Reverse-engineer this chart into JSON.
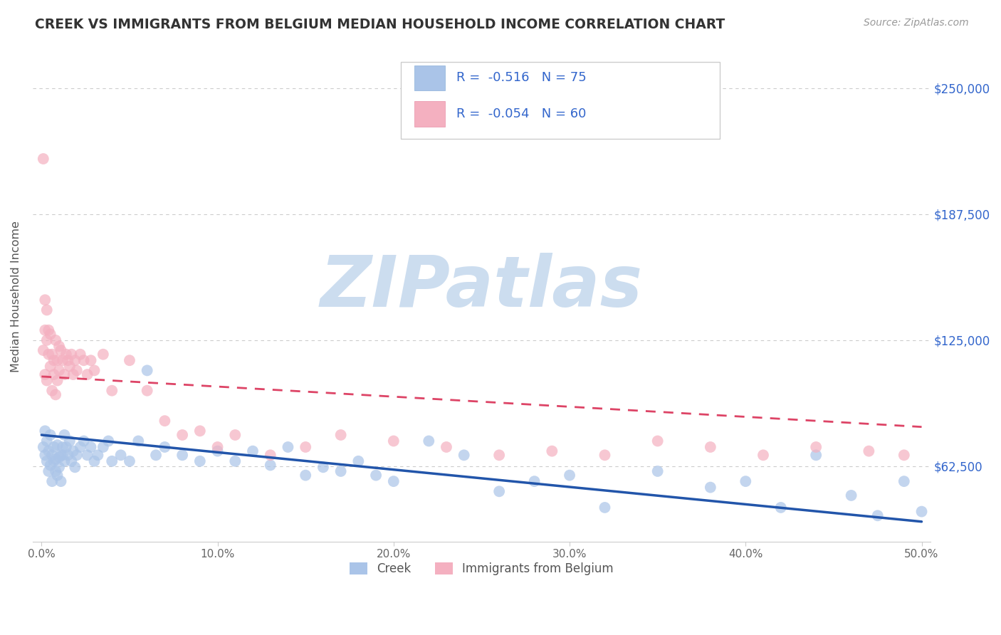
{
  "title": "CREEK VS IMMIGRANTS FROM BELGIUM MEDIAN HOUSEHOLD INCOME CORRELATION CHART",
  "source": "Source: ZipAtlas.com",
  "ylabel": "Median Household Income",
  "y_tick_values": [
    62500,
    125000,
    187500,
    250000
  ],
  "y_tick_labels": [
    "$62,500",
    "$125,000",
    "$187,500",
    "$250,000"
  ],
  "xlim": [
    -0.005,
    0.505
  ],
  "ylim": [
    25000,
    268000
  ],
  "creek_color": "#aac4e8",
  "belgium_color": "#f4b0c0",
  "creek_line_color": "#2255aa",
  "belgium_line_color": "#dd4466",
  "watermark_text": "ZIPatlas",
  "watermark_color": "#ccddef",
  "legend_creek_text": "R =  -0.516   N = 75",
  "legend_belgium_text": "R =  -0.054   N = 60",
  "legend_text_color": "#3366cc",
  "x_tick_positions": [
    0.0,
    0.1,
    0.2,
    0.3,
    0.4,
    0.5
  ],
  "x_tick_labels": [
    "0.0%",
    "10.0%",
    "20.0%",
    "30.0%",
    "40.0%",
    "50.0%"
  ],
  "bottom_legend_labels": [
    "Creek",
    "Immigrants from Belgium"
  ],
  "creek_scatter_x": [
    0.001,
    0.002,
    0.002,
    0.003,
    0.003,
    0.004,
    0.004,
    0.005,
    0.005,
    0.006,
    0.006,
    0.007,
    0.007,
    0.008,
    0.008,
    0.009,
    0.009,
    0.01,
    0.01,
    0.011,
    0.011,
    0.012,
    0.012,
    0.013,
    0.013,
    0.014,
    0.015,
    0.016,
    0.017,
    0.018,
    0.019,
    0.02,
    0.022,
    0.024,
    0.026,
    0.028,
    0.03,
    0.032,
    0.035,
    0.038,
    0.04,
    0.045,
    0.05,
    0.055,
    0.06,
    0.065,
    0.07,
    0.08,
    0.09,
    0.1,
    0.11,
    0.12,
    0.13,
    0.14,
    0.15,
    0.16,
    0.17,
    0.18,
    0.19,
    0.2,
    0.22,
    0.24,
    0.26,
    0.28,
    0.3,
    0.32,
    0.35,
    0.38,
    0.4,
    0.42,
    0.44,
    0.46,
    0.475,
    0.49,
    0.5
  ],
  "creek_scatter_y": [
    72000,
    68000,
    80000,
    65000,
    75000,
    70000,
    60000,
    78000,
    63000,
    68000,
    55000,
    72000,
    65000,
    60000,
    66000,
    73000,
    58000,
    67000,
    62000,
    68000,
    55000,
    72000,
    68000,
    65000,
    78000,
    72000,
    68000,
    75000,
    65000,
    70000,
    62000,
    68000,
    72000,
    75000,
    68000,
    72000,
    65000,
    68000,
    72000,
    75000,
    65000,
    68000,
    65000,
    75000,
    110000,
    68000,
    72000,
    68000,
    65000,
    70000,
    65000,
    70000,
    63000,
    72000,
    58000,
    62000,
    60000,
    65000,
    58000,
    55000,
    75000,
    68000,
    50000,
    55000,
    58000,
    42000,
    60000,
    52000,
    55000,
    42000,
    68000,
    48000,
    38000,
    55000,
    40000
  ],
  "belgium_scatter_x": [
    0.001,
    0.001,
    0.002,
    0.002,
    0.003,
    0.003,
    0.004,
    0.004,
    0.005,
    0.005,
    0.006,
    0.006,
    0.007,
    0.007,
    0.008,
    0.008,
    0.009,
    0.009,
    0.01,
    0.01,
    0.011,
    0.012,
    0.013,
    0.014,
    0.015,
    0.016,
    0.017,
    0.018,
    0.019,
    0.02,
    0.022,
    0.024,
    0.026,
    0.028,
    0.03,
    0.035,
    0.04,
    0.05,
    0.06,
    0.07,
    0.08,
    0.09,
    0.1,
    0.11,
    0.13,
    0.15,
    0.17,
    0.2,
    0.23,
    0.26,
    0.29,
    0.32,
    0.35,
    0.38,
    0.41,
    0.44,
    0.47,
    0.49,
    0.002,
    0.003
  ],
  "belgium_scatter_y": [
    215000,
    120000,
    145000,
    108000,
    140000,
    105000,
    130000,
    118000,
    128000,
    112000,
    118000,
    100000,
    115000,
    108000,
    125000,
    98000,
    115000,
    105000,
    122000,
    110000,
    120000,
    115000,
    108000,
    118000,
    115000,
    112000,
    118000,
    108000,
    115000,
    110000,
    118000,
    115000,
    108000,
    115000,
    110000,
    118000,
    100000,
    115000,
    100000,
    85000,
    78000,
    80000,
    72000,
    78000,
    68000,
    72000,
    78000,
    75000,
    72000,
    68000,
    70000,
    68000,
    75000,
    72000,
    68000,
    72000,
    70000,
    68000,
    130000,
    125000
  ],
  "creek_trend_x0": 0.0,
  "creek_trend_y0": 78000,
  "creek_trend_x1": 0.5,
  "creek_trend_y1": 35000,
  "belgium_trend_x0": 0.0,
  "belgium_trend_y0": 107000,
  "belgium_trend_x1": 0.5,
  "belgium_trend_y1": 82000
}
